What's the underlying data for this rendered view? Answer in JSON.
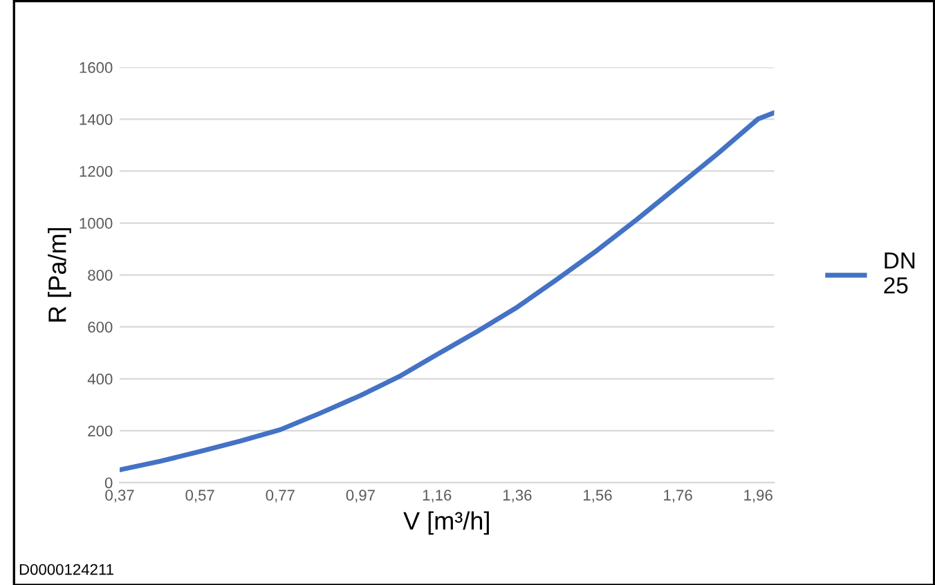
{
  "chart_data": {
    "type": "line",
    "xlabel": "V [m³/h]",
    "ylabel": "R [Pa/m]",
    "x": [
      0.37,
      0.47,
      0.57,
      0.67,
      0.77,
      0.87,
      0.97,
      1.07,
      1.16,
      1.26,
      1.36,
      1.46,
      1.56,
      1.66,
      1.76,
      1.86,
      1.96,
      2.0
    ],
    "series": [
      {
        "name": "DN\n25",
        "color": "#4472c4",
        "values": [
          49,
          82,
          120,
          160,
          204,
          268,
          336,
          412,
          493,
          582,
          676,
          784,
          896,
          1016,
          1142,
          1268,
          1401,
          1425
        ]
      }
    ],
    "xlim": [
      0.37,
      2.0
    ],
    "xticks": [
      {
        "value": 0.37,
        "label": "0,37"
      },
      {
        "value": 0.57,
        "label": "0,57"
      },
      {
        "value": 0.77,
        "label": "0,77"
      },
      {
        "value": 0.97,
        "label": "0,97"
      },
      {
        "value": 1.16,
        "label": "1,16"
      },
      {
        "value": 1.36,
        "label": "1,36"
      },
      {
        "value": 1.56,
        "label": "1,56"
      },
      {
        "value": 1.76,
        "label": "1,76"
      },
      {
        "value": 1.96,
        "label": "1,96"
      }
    ],
    "ylim": [
      0,
      1600
    ],
    "yticks": [
      0,
      200,
      400,
      600,
      800,
      1000,
      1200,
      1400,
      1600
    ],
    "grid": "y",
    "legend": "right",
    "marker": "none",
    "line_style": "solid",
    "annotations": [
      "D0000124211"
    ]
  }
}
